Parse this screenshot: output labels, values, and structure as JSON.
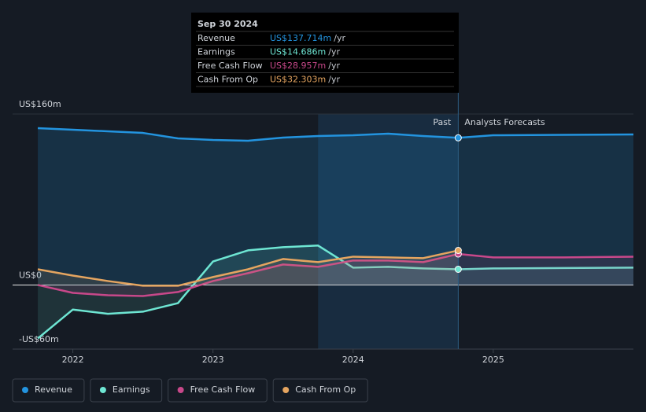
{
  "chart_data": {
    "type": "line",
    "x": [
      2021.75,
      2022.0,
      2022.25,
      2022.5,
      2022.75,
      2023.0,
      2023.25,
      2023.5,
      2023.75,
      2024.0,
      2024.25,
      2024.5,
      2024.75,
      2025.0,
      2025.5,
      2026.0
    ],
    "series": [
      {
        "name": "Revenue",
        "color": "#2394df",
        "values": [
          146.8,
          145.3,
          143.8,
          142.3,
          137.2,
          135.7,
          135.0,
          137.9,
          139.4,
          140.1,
          141.6,
          139.4,
          137.7,
          140.1,
          140.5,
          140.9
        ]
      },
      {
        "name": "Earnings",
        "color": "#6ee6d3",
        "values": [
          -50,
          -23,
          -27,
          -25,
          -17,
          22,
          32.4,
          35.4,
          36.9,
          16.2,
          17,
          15.5,
          14.7,
          15.5,
          15.9,
          16.2
        ]
      },
      {
        "name": "Free Cash Flow",
        "color": "#c8488a",
        "values": [
          0,
          -7.4,
          -9.6,
          -10.3,
          -6.6,
          3.7,
          11.1,
          19.2,
          17,
          22.9,
          22.9,
          21.4,
          29.0,
          25.8,
          25.8,
          26.5
        ]
      },
      {
        "name": "Cash From Op",
        "color": "#e5a560",
        "values": [
          14.7,
          8.8,
          3.7,
          -0.7,
          -0.7,
          7.4,
          14.7,
          24.3,
          21.4,
          26.5,
          25.8,
          25.1,
          32.3,
          null,
          null,
          null
        ]
      }
    ],
    "xlim": [
      2021.57,
      2026.0
    ],
    "xticks": [
      2022,
      2023,
      2024,
      2025
    ],
    "ylim": [
      -60,
      160
    ],
    "yticks": [
      {
        "value": 160,
        "label": "US$160m"
      },
      {
        "value": 0,
        "label": "US$0"
      },
      {
        "value": -60,
        "label": "-US$60m"
      }
    ],
    "forecast_start": 2024.75,
    "past_label": "Past",
    "forecast_label": "Analysts Forecasts",
    "tooltip": {
      "date": "Sep 30 2024",
      "rows": [
        {
          "label": "Revenue",
          "value": "US$137.714m",
          "unit": "/yr"
        },
        {
          "label": "Earnings",
          "value": "US$14.686m",
          "unit": "/yr"
        },
        {
          "label": "Free Cash Flow",
          "value": "US$28.957m",
          "unit": "/yr"
        },
        {
          "label": "Cash From Op",
          "value": "US$32.303m",
          "unit": "/yr"
        }
      ]
    }
  }
}
